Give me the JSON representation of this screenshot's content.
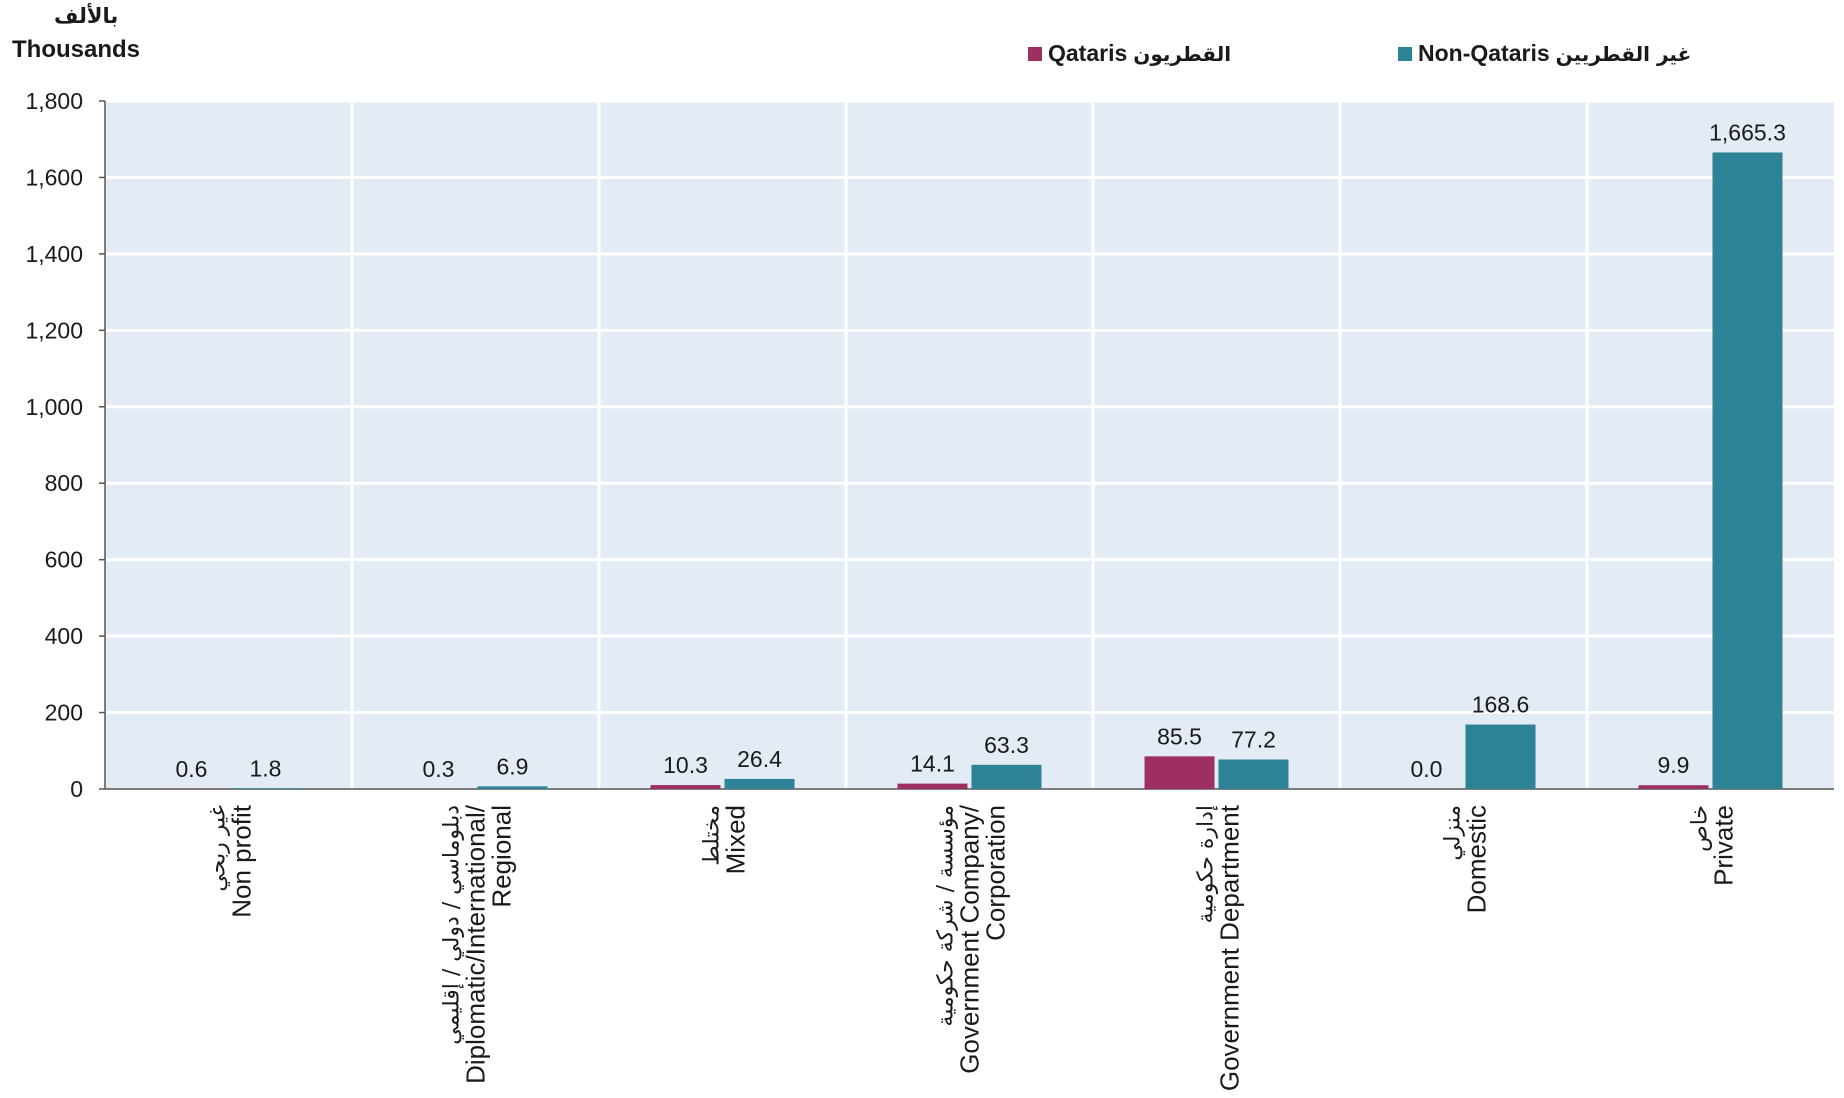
{
  "unit_label_ar": "بالألف",
  "unit_label_en": "Thousands",
  "colors": {
    "qataris": "#9e2f62",
    "non_qataris": "#2e8295",
    "plot_bg": "#e3ebf4",
    "grid": "#ffffff",
    "axis": "#555555"
  },
  "legend": {
    "qataris": {
      "en": "Qataris",
      "ar": "القطريون"
    },
    "non_qataris": {
      "en": "Non-Qataris",
      "ar": "غير القطريين"
    }
  },
  "chart_data": {
    "type": "bar",
    "ylim": [
      0,
      1800
    ],
    "yticks": [
      "0",
      "200",
      "400",
      "600",
      "800",
      "1,000",
      "1,200",
      "1,400",
      "1,600",
      "1,800"
    ],
    "categories": [
      {
        "en": [
          "Non profit"
        ],
        "ar": "غير ربحي"
      },
      {
        "en": [
          "Diplomatic/International/",
          "Regional"
        ],
        "ar": "دبلوماسي / دولي / إقليمي"
      },
      {
        "en": [
          "Mixed"
        ],
        "ar": "مختلط"
      },
      {
        "en": [
          "Government Company/",
          "Corporation"
        ],
        "ar": "مؤسسة / شركة حكومية"
      },
      {
        "en": [
          "Government Department"
        ],
        "ar": "إدارة حكومية"
      },
      {
        "en": [
          "Domestic"
        ],
        "ar": "منزلي"
      },
      {
        "en": [
          "Private"
        ],
        "ar": "خاص"
      }
    ],
    "series": [
      {
        "name": "Qataris القطريون",
        "values": [
          0.6,
          0.3,
          10.3,
          14.1,
          85.5,
          0.0,
          9.9
        ],
        "labels": [
          "0.6",
          "0.3",
          "10.3",
          "14.1",
          "85.5",
          "0.0",
          "9.9"
        ]
      },
      {
        "name": "Non-Qataris غير القطريين",
        "values": [
          1.8,
          6.9,
          26.4,
          63.3,
          77.2,
          168.6,
          1665.3
        ],
        "labels": [
          "1.8",
          "6.9",
          "26.4",
          "63.3",
          "77.2",
          "168.6",
          "1,665.3"
        ]
      }
    ],
    "grid": true,
    "legend_position": "top"
  }
}
